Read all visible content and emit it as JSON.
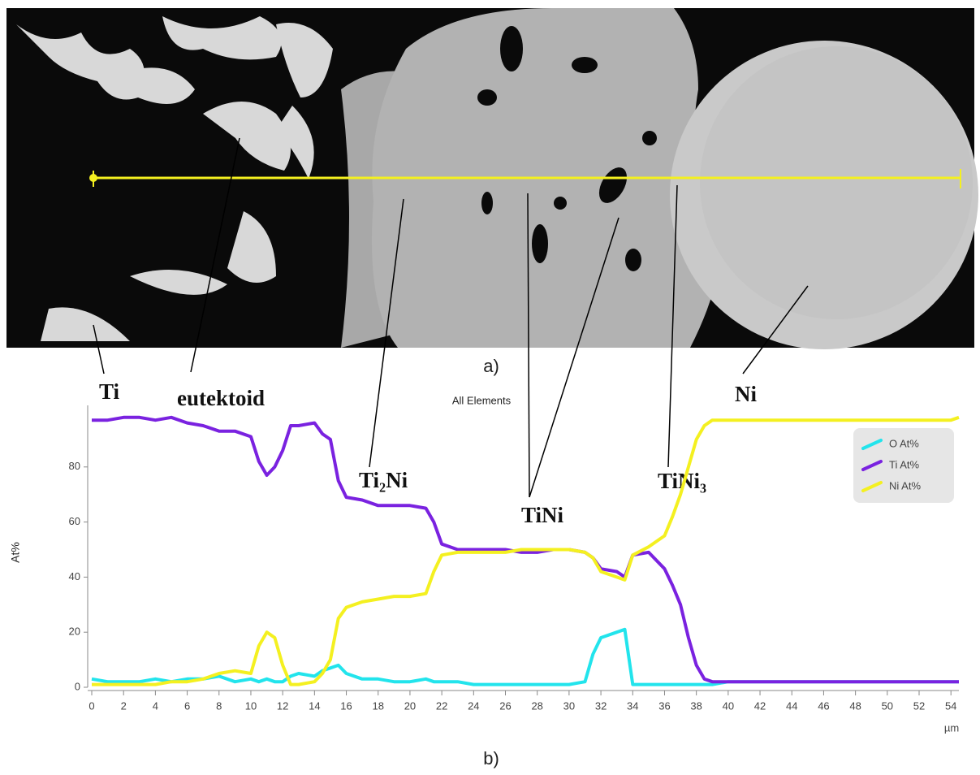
{
  "chart_data": {
    "type": "line",
    "title": "All Elements",
    "y_label": "At%",
    "x_label": "µm",
    "panel_labels": [
      "a)",
      "b)"
    ],
    "annotations": [
      "Ti",
      "eutektoid",
      "Ti₂Ni",
      "TiNi",
      "TiNi₃",
      "Ni"
    ],
    "x": [
      0,
      1,
      2,
      3,
      4,
      5,
      6,
      7,
      8,
      9,
      10,
      10.5,
      11,
      11.5,
      12,
      12.5,
      13,
      14,
      14.5,
      15,
      15.5,
      16,
      17,
      18,
      19,
      20,
      21,
      21.5,
      22,
      23,
      24,
      25,
      26,
      27,
      28,
      29,
      30,
      31,
      31.5,
      32,
      33,
      33.5,
      34,
      35,
      36,
      36.5,
      37,
      37.5,
      38,
      38.5,
      39,
      40,
      41,
      42,
      43,
      44,
      45,
      46,
      47,
      48,
      49,
      50,
      51,
      52,
      53,
      54,
      54.5
    ],
    "series": [
      {
        "name": "O At%",
        "color": "#22e4ec",
        "values": [
          3,
          2,
          2,
          2,
          3,
          2,
          3,
          3,
          4,
          2,
          3,
          2,
          3,
          2,
          2,
          4,
          5,
          4,
          6,
          7,
          8,
          5,
          3,
          3,
          2,
          2,
          3,
          2,
          2,
          2,
          1,
          1,
          1,
          1,
          1,
          1,
          1,
          2,
          12,
          18,
          20,
          21,
          1,
          1,
          1,
          1,
          1,
          1,
          1,
          1,
          1,
          2,
          2,
          2,
          2,
          2,
          2,
          2,
          2,
          2,
          2,
          2,
          2,
          2,
          2,
          2,
          2
        ]
      },
      {
        "name": "Ti At%",
        "color": "#7a22e0",
        "values": [
          97,
          97,
          98,
          98,
          97,
          98,
          96,
          95,
          93,
          93,
          91,
          82,
          77,
          80,
          86,
          95,
          95,
          96,
          92,
          90,
          75,
          69,
          68,
          66,
          66,
          66,
          65,
          60,
          52,
          50,
          50,
          50,
          50,
          49,
          49,
          50,
          50,
          49,
          47,
          43,
          42,
          40,
          48,
          49,
          43,
          37,
          30,
          18,
          8,
          3,
          2,
          2,
          2,
          2,
          2,
          2,
          2,
          2,
          2,
          2,
          2,
          2,
          2,
          2,
          2,
          2,
          2
        ]
      },
      {
        "name": "Ni At%",
        "color": "#f4f020",
        "values": [
          1,
          1,
          1,
          1,
          1,
          2,
          2,
          3,
          5,
          6,
          5,
          15,
          20,
          18,
          8,
          1,
          1,
          2,
          5,
          10,
          25,
          29,
          31,
          32,
          33,
          33,
          34,
          42,
          48,
          49,
          49,
          49,
          49,
          50,
          50,
          50,
          50,
          49,
          47,
          42,
          40,
          39,
          48,
          51,
          55,
          62,
          70,
          80,
          90,
          95,
          97,
          97,
          97,
          97,
          97,
          97,
          97,
          97,
          97,
          97,
          97,
          97,
          97,
          97,
          97,
          97,
          98
        ]
      }
    ],
    "xlim": [
      0,
      54.5
    ],
    "ylim": [
      0,
      100
    ],
    "xticks": [
      0,
      2,
      4,
      6,
      8,
      10,
      12,
      14,
      16,
      18,
      20,
      22,
      24,
      26,
      28,
      30,
      32,
      34,
      36,
      38,
      40,
      42,
      44,
      46,
      48,
      50,
      52,
      54
    ],
    "yticks": [
      0,
      20,
      40,
      60,
      80
    ],
    "grid": false,
    "legend": "top-right"
  }
}
